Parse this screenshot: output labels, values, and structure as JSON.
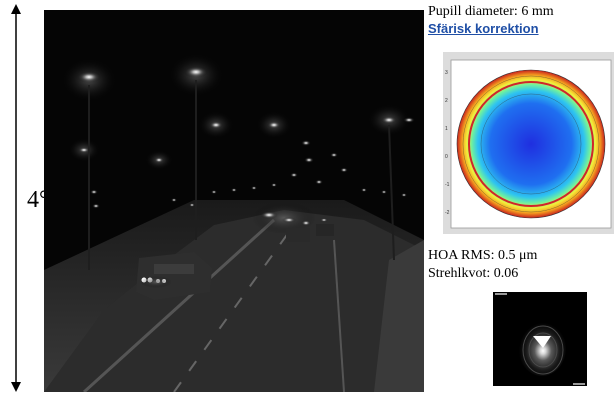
{
  "fov": {
    "label": "4°"
  },
  "info": {
    "pupil_diameter": "Pupill diameter: 6 mm",
    "correction_link": "Sfärisk korrektion",
    "hoa_rms": "HOA RMS: 0.5 μm",
    "strehl": "Strehlkvot: 0.06"
  },
  "scene": {
    "description_icon": "night-highway-image"
  },
  "colors": {
    "link": "#1f4fa6",
    "background": "#ffffff",
    "scene_bg": "#000000",
    "map_outline": "#d0262a"
  }
}
